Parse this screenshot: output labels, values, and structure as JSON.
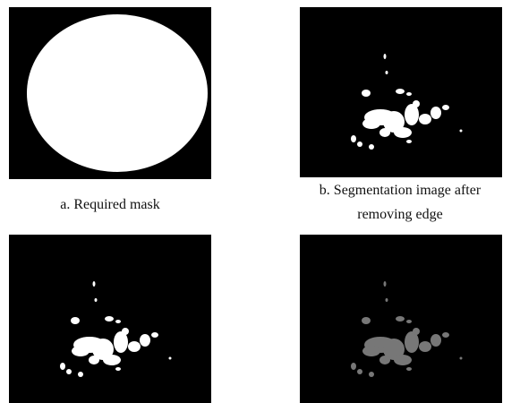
{
  "figures": [
    {
      "caption_lines": [
        "a. Required mask"
      ]
    },
    {
      "caption_lines": [
        "b. Segmentation image after",
        "removing edge"
      ]
    }
  ]
}
